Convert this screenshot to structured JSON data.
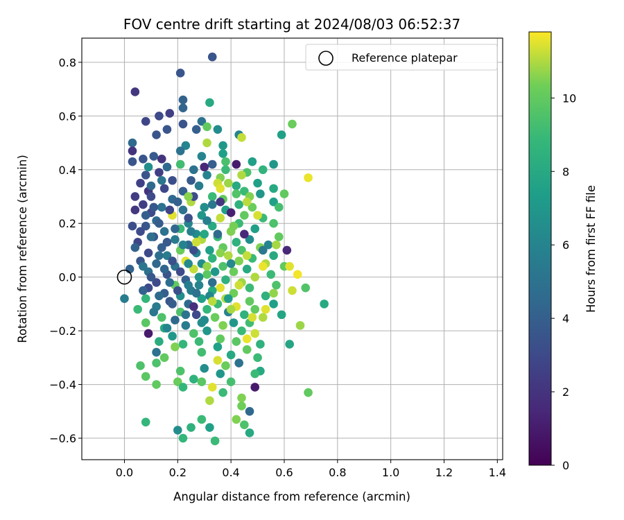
{
  "chart_data": {
    "type": "scatter",
    "title": "FOV centre drift starting at 2024/08/03 06:52:37",
    "xlabel": "Angular distance from reference (arcmin)",
    "ylabel": "Rotation from reference (arcmin)",
    "xlim": [
      -0.16,
      1.42
    ],
    "ylim": [
      -0.68,
      0.89
    ],
    "x_ticks": [
      0.0,
      0.2,
      0.4,
      0.6,
      0.8,
      1.0,
      1.2,
      1.4
    ],
    "x_tick_labels": [
      "0.0",
      "0.2",
      "0.4",
      "0.6",
      "0.8",
      "1.0",
      "1.2",
      "1.4"
    ],
    "y_ticks": [
      -0.6,
      -0.4,
      -0.2,
      0.0,
      0.2,
      0.4,
      0.6,
      0.8
    ],
    "y_tick_labels": [
      "−0.6",
      "−0.4",
      "−0.2",
      "0.0",
      "0.2",
      "0.4",
      "0.6",
      "0.8"
    ],
    "grid": true,
    "legend": {
      "placement": "top-right",
      "entries": [
        "Reference platepar"
      ]
    },
    "reference_point": {
      "x": 0.0,
      "y": 0.0,
      "label": "Reference platepar"
    },
    "colorbar": {
      "label": "Hours from first FF file",
      "colormap": "viridis",
      "range": [
        0,
        11.8
      ],
      "ticks": [
        0,
        2,
        4,
        6,
        8,
        10
      ],
      "tick_labels": [
        "0",
        "2",
        "4",
        "6",
        "8",
        "10"
      ]
    },
    "points": [
      [
        0.33,
        0.82,
        3.5
      ],
      [
        0.04,
        0.69,
        2.2
      ],
      [
        0.21,
        0.76,
        3.5
      ],
      [
        0.22,
        0.66,
        4.2
      ],
      [
        0.32,
        0.65,
        8.0
      ],
      [
        0.22,
        0.63,
        4.3
      ],
      [
        0.13,
        0.6,
        3.0
      ],
      [
        0.17,
        0.61,
        2.5
      ],
      [
        0.29,
        0.58,
        5.0
      ],
      [
        0.08,
        0.58,
        2.8
      ],
      [
        0.22,
        0.57,
        3.5
      ],
      [
        0.31,
        0.56,
        10.0
      ],
      [
        0.35,
        0.55,
        6.5
      ],
      [
        0.27,
        0.55,
        4.0
      ],
      [
        0.16,
        0.55,
        3.5
      ],
      [
        0.43,
        0.53,
        6.0
      ],
      [
        0.44,
        0.52,
        11.2
      ],
      [
        0.59,
        0.53,
        7.5
      ],
      [
        0.63,
        0.57,
        10.2
      ],
      [
        0.12,
        0.53,
        3.5
      ],
      [
        0.03,
        0.5,
        4.5
      ],
      [
        0.31,
        0.5,
        11.0
      ],
      [
        0.37,
        0.49,
        7.0
      ],
      [
        0.23,
        0.49,
        6.0
      ],
      [
        0.03,
        0.47,
        2.0
      ],
      [
        0.21,
        0.47,
        5.0
      ],
      [
        0.37,
        0.46,
        7.5
      ],
      [
        0.29,
        0.45,
        6.0
      ],
      [
        0.07,
        0.44,
        3.5
      ],
      [
        0.11,
        0.45,
        3.8
      ],
      [
        0.03,
        0.43,
        3.5
      ],
      [
        0.42,
        0.42,
        1.0
      ],
      [
        0.48,
        0.43,
        7.5
      ],
      [
        0.56,
        0.42,
        7.0
      ],
      [
        0.33,
        0.42,
        4.0
      ],
      [
        0.21,
        0.42,
        9.2
      ],
      [
        0.16,
        0.41,
        4.5
      ],
      [
        0.26,
        0.4,
        5.0
      ],
      [
        0.38,
        0.4,
        9.0
      ],
      [
        0.46,
        0.39,
        9.5
      ],
      [
        0.08,
        0.38,
        3.5
      ],
      [
        0.13,
        0.39,
        2.5
      ],
      [
        0.31,
        0.38,
        6.0
      ],
      [
        0.36,
        0.37,
        10.5
      ],
      [
        0.69,
        0.37,
        11.6
      ],
      [
        0.35,
        0.35,
        11.3
      ],
      [
        0.5,
        0.35,
        7.5
      ],
      [
        0.42,
        0.34,
        8.0
      ],
      [
        0.28,
        0.34,
        5.5
      ],
      [
        0.56,
        0.33,
        8.0
      ],
      [
        0.45,
        0.32,
        9.0
      ],
      [
        0.36,
        0.33,
        11.5
      ],
      [
        0.09,
        0.32,
        2.0
      ],
      [
        0.22,
        0.32,
        4.0
      ],
      [
        0.51,
        0.31,
        7.0
      ],
      [
        0.6,
        0.31,
        10.0
      ],
      [
        0.47,
        0.3,
        10.5
      ],
      [
        0.33,
        0.3,
        9.0
      ],
      [
        0.1,
        0.3,
        3.0
      ],
      [
        0.18,
        0.29,
        4.5
      ],
      [
        0.37,
        0.29,
        10.0
      ],
      [
        0.56,
        0.28,
        7.5
      ],
      [
        0.25,
        0.28,
        11.0
      ],
      [
        0.07,
        0.27,
        2.5
      ],
      [
        0.43,
        0.27,
        8.5
      ],
      [
        0.14,
        0.26,
        5.0
      ],
      [
        0.3,
        0.26,
        6.5
      ],
      [
        0.48,
        0.26,
        10.2
      ],
      [
        0.04,
        0.25,
        2.2
      ],
      [
        0.38,
        0.25,
        7.5
      ],
      [
        0.22,
        0.25,
        5.0
      ],
      [
        0.1,
        0.24,
        3.0
      ],
      [
        0.45,
        0.23,
        10.0
      ],
      [
        0.29,
        0.23,
        7.0
      ],
      [
        0.18,
        0.23,
        11.5
      ],
      [
        0.52,
        0.22,
        9.0
      ],
      [
        0.36,
        0.22,
        11.2
      ],
      [
        0.12,
        0.21,
        4.5
      ],
      [
        0.56,
        0.2,
        9.5
      ],
      [
        0.24,
        0.2,
        6.0
      ],
      [
        0.43,
        0.2,
        9.0
      ],
      [
        0.08,
        0.19,
        3.5
      ],
      [
        0.03,
        0.19,
        3.2
      ],
      [
        0.33,
        0.19,
        8.0
      ],
      [
        0.21,
        0.18,
        9.0
      ],
      [
        0.49,
        0.18,
        7.5
      ],
      [
        0.15,
        0.17,
        5.0
      ],
      [
        0.4,
        0.17,
        10.5
      ],
      [
        0.27,
        0.16,
        6.5
      ],
      [
        0.58,
        0.15,
        10.0
      ],
      [
        0.11,
        0.15,
        3.5
      ],
      [
        0.35,
        0.15,
        9.0
      ],
      [
        0.47,
        0.14,
        6.5
      ],
      [
        0.19,
        0.14,
        5.5
      ],
      [
        0.29,
        0.14,
        11.0
      ],
      [
        0.05,
        0.13,
        2.8
      ],
      [
        0.42,
        0.13,
        8.5
      ],
      [
        0.54,
        0.12,
        6.0
      ],
      [
        0.24,
        0.12,
        4.5
      ],
      [
        0.37,
        0.11,
        10.0
      ],
      [
        0.14,
        0.11,
        4.0
      ],
      [
        0.51,
        0.11,
        10.5
      ],
      [
        0.32,
        0.1,
        7.5
      ],
      [
        0.61,
        0.1,
        1.5
      ],
      [
        0.21,
        0.1,
        10.2
      ],
      [
        0.44,
        0.1,
        9.5
      ],
      [
        0.09,
        0.09,
        3.0
      ],
      [
        0.27,
        0.09,
        6.0
      ],
      [
        0.56,
        0.08,
        8.0
      ],
      [
        0.39,
        0.08,
        11.0
      ],
      [
        0.16,
        0.08,
        5.5
      ],
      [
        0.48,
        0.07,
        9.0
      ],
      [
        0.33,
        0.07,
        8.5
      ],
      [
        0.23,
        0.06,
        11.5
      ],
      [
        0.06,
        0.06,
        3.5
      ],
      [
        0.43,
        0.06,
        10.5
      ],
      [
        0.12,
        0.05,
        4.5
      ],
      [
        0.53,
        0.05,
        11.0
      ],
      [
        0.29,
        0.05,
        6.5
      ],
      [
        0.37,
        0.04,
        9.5
      ],
      [
        0.6,
        0.04,
        10.0
      ],
      [
        0.19,
        0.04,
        5.0
      ],
      [
        0.46,
        0.03,
        8.0
      ],
      [
        0.02,
        0.03,
        4.2
      ],
      [
        0.26,
        0.03,
        11.2
      ],
      [
        0.34,
        0.02,
        7.0
      ],
      [
        0.09,
        0.02,
        5.0
      ],
      [
        0.41,
        0.02,
        10.2
      ],
      [
        0.55,
        0.01,
        9.0
      ],
      [
        0.16,
        0.01,
        3.5
      ],
      [
        0.31,
        0.01,
        9.8
      ],
      [
        0.49,
        0.0,
        11.0
      ],
      [
        0.23,
        -0.01,
        4.0
      ],
      [
        0.38,
        -0.01,
        8.5
      ],
      [
        0.12,
        -0.02,
        3.0
      ],
      [
        0.44,
        -0.02,
        10.8
      ],
      [
        0.28,
        -0.03,
        6.0
      ],
      [
        0.57,
        -0.03,
        9.5
      ],
      [
        0.19,
        -0.03,
        10.0
      ],
      [
        0.36,
        -0.04,
        11.5
      ],
      [
        0.09,
        -0.04,
        3.0
      ],
      [
        0.47,
        -0.04,
        9.0
      ],
      [
        0.25,
        -0.05,
        5.5
      ],
      [
        0.63,
        -0.05,
        11.3
      ],
      [
        0.33,
        -0.05,
        8.0
      ],
      [
        0.15,
        -0.06,
        4.0
      ],
      [
        0.41,
        -0.06,
        10.3
      ],
      [
        0.53,
        -0.07,
        8.5
      ],
      [
        0.21,
        -0.07,
        6.5
      ],
      [
        0.38,
        -0.08,
        11.0
      ],
      [
        0.08,
        -0.08,
        8.8
      ],
      [
        0.29,
        -0.08,
        7.5
      ],
      [
        0.47,
        -0.09,
        10.0
      ],
      [
        0.17,
        -0.09,
        3.5
      ],
      [
        0.35,
        -0.1,
        9.0
      ],
      [
        0.56,
        -0.1,
        7.5
      ],
      [
        0.24,
        -0.1,
        4.5
      ],
      [
        0.42,
        -0.11,
        11.5
      ],
      [
        0.12,
        -0.11,
        5.5
      ],
      [
        0.31,
        -0.12,
        8.8
      ],
      [
        0.49,
        -0.12,
        10.0
      ],
      [
        0.05,
        -0.12,
        9.0
      ],
      [
        0.21,
        -0.13,
        9.5
      ],
      [
        0.39,
        -0.13,
        6.0
      ],
      [
        0.59,
        -0.14,
        7.8
      ],
      [
        0.27,
        -0.14,
        3.0
      ],
      [
        0.45,
        -0.14,
        8.5
      ],
      [
        0.14,
        -0.15,
        9.5
      ],
      [
        0.34,
        -0.15,
        10.2
      ],
      [
        0.52,
        -0.15,
        11.0
      ],
      [
        0.19,
        -0.16,
        4.5
      ],
      [
        0.41,
        -0.17,
        7.0
      ],
      [
        0.08,
        -0.17,
        9.8
      ],
      [
        0.29,
        -0.17,
        6.5
      ],
      [
        0.47,
        -0.17,
        9.2
      ],
      [
        0.23,
        -0.18,
        5.5
      ],
      [
        0.37,
        -0.18,
        10.5
      ],
      [
        0.66,
        -0.18,
        10.8
      ],
      [
        0.15,
        -0.19,
        8.0
      ],
      [
        0.31,
        -0.2,
        7.0
      ],
      [
        0.44,
        -0.2,
        9.0
      ],
      [
        0.09,
        -0.21,
        1.0
      ],
      [
        0.26,
        -0.21,
        9.5
      ],
      [
        0.49,
        -0.21,
        11.3
      ],
      [
        0.18,
        -0.22,
        7.0
      ],
      [
        0.36,
        -0.23,
        10.0
      ],
      [
        0.13,
        -0.24,
        8.2
      ],
      [
        0.28,
        -0.24,
        9.0
      ],
      [
        0.42,
        -0.24,
        9.8
      ],
      [
        0.51,
        -0.25,
        8.5
      ],
      [
        0.22,
        -0.25,
        8.8
      ],
      [
        0.62,
        -0.25,
        7.8
      ],
      [
        0.35,
        -0.26,
        7.5
      ],
      [
        0.19,
        -0.26,
        10.5
      ],
      [
        0.46,
        -0.27,
        10.0
      ],
      [
        0.12,
        -0.28,
        5.0
      ],
      [
        0.29,
        -0.28,
        9.2
      ],
      [
        0.4,
        -0.29,
        8.0
      ],
      [
        0.15,
        -0.3,
        10.0
      ],
      [
        0.5,
        -0.3,
        9.0
      ],
      [
        0.35,
        -0.31,
        11.4
      ],
      [
        0.43,
        -0.32,
        5.0
      ],
      [
        0.12,
        -0.32,
        9.5
      ],
      [
        0.06,
        -0.33,
        9.5
      ],
      [
        0.38,
        -0.33,
        10.2
      ],
      [
        0.3,
        -0.34,
        6.5
      ],
      [
        0.51,
        -0.35,
        8.0
      ],
      [
        0.21,
        -0.35,
        9.5
      ],
      [
        0.36,
        -0.36,
        7.0
      ],
      [
        0.49,
        -0.36,
        9.0
      ],
      [
        0.08,
        -0.37,
        9.8
      ],
      [
        0.26,
        -0.38,
        8.5
      ],
      [
        0.12,
        -0.4,
        10.0
      ],
      [
        0.4,
        -0.39,
        9.3
      ],
      [
        0.2,
        -0.39,
        10.2
      ],
      [
        0.29,
        -0.39,
        9.8
      ],
      [
        0.37,
        -0.43,
        9.0
      ],
      [
        0.33,
        -0.41,
        11.5
      ],
      [
        0.22,
        -0.41,
        8.8
      ],
      [
        0.49,
        -0.41,
        1.0
      ],
      [
        0.44,
        -0.45,
        10.5
      ],
      [
        0.69,
        -0.43,
        10.0
      ],
      [
        0.32,
        -0.46,
        11.0
      ],
      [
        0.44,
        -0.48,
        10.3
      ],
      [
        0.47,
        -0.5,
        4.5
      ],
      [
        0.29,
        -0.53,
        9.0
      ],
      [
        0.42,
        -0.53,
        10.5
      ],
      [
        0.08,
        -0.54,
        8.8
      ],
      [
        0.45,
        -0.55,
        9.5
      ],
      [
        0.32,
        -0.56,
        7.5
      ],
      [
        0.25,
        -0.56,
        8.5
      ],
      [
        0.2,
        -0.57,
        6.5
      ],
      [
        0.47,
        -0.58,
        8.0
      ],
      [
        0.22,
        -0.6,
        8.8
      ],
      [
        0.34,
        -0.61,
        9.0
      ],
      [
        0.75,
        -0.1,
        8.0
      ],
      [
        0.68,
        -0.04,
        9.6
      ],
      [
        0.0,
        -0.08,
        5.5
      ],
      [
        0.14,
        0.44,
        2.0
      ],
      [
        0.18,
        0.36,
        3.2
      ],
      [
        0.06,
        0.35,
        2.6
      ],
      [
        0.25,
        0.36,
        3.8
      ],
      [
        0.1,
        0.34,
        4.6
      ],
      [
        0.3,
        0.41,
        1.5
      ],
      [
        0.15,
        0.33,
        2.9
      ],
      [
        0.26,
        0.3,
        3.1
      ],
      [
        0.04,
        0.3,
        2.4
      ],
      [
        0.2,
        0.28,
        4.1
      ],
      [
        0.33,
        0.27,
        5.3
      ],
      [
        0.11,
        0.26,
        3.6
      ],
      [
        0.17,
        0.25,
        2.8
      ],
      [
        0.08,
        0.23,
        4.0
      ],
      [
        0.24,
        0.22,
        3.3
      ],
      [
        0.13,
        0.2,
        3.9
      ],
      [
        0.31,
        0.21,
        5.8
      ],
      [
        0.19,
        0.18,
        4.4
      ],
      [
        0.06,
        0.17,
        3.1
      ],
      [
        0.25,
        0.17,
        5.7
      ],
      [
        0.1,
        0.15,
        4.8
      ],
      [
        0.3,
        0.16,
        7.9
      ],
      [
        0.16,
        0.13,
        3.7
      ],
      [
        0.22,
        0.12,
        5.9
      ],
      [
        0.04,
        0.11,
        4.2
      ],
      [
        0.26,
        0.1,
        3.2
      ],
      [
        0.13,
        0.08,
        4.9
      ],
      [
        0.18,
        0.06,
        3.4
      ],
      [
        0.24,
        0.05,
        6.3
      ],
      [
        0.07,
        0.04,
        5.2
      ],
      [
        0.15,
        0.03,
        4.3
      ],
      [
        0.21,
        0.02,
        3.0
      ],
      [
        0.28,
        0.0,
        6.8
      ],
      [
        0.1,
        0.0,
        3.6
      ],
      [
        0.17,
        -0.02,
        4.7
      ],
      [
        0.24,
        -0.03,
        5.6
      ],
      [
        0.07,
        -0.05,
        4.1
      ],
      [
        0.2,
        -0.05,
        3.3
      ],
      [
        0.27,
        -0.06,
        5.0
      ],
      [
        0.13,
        -0.07,
        4.6
      ],
      [
        0.32,
        -0.07,
        6.1
      ],
      [
        0.18,
        -0.1,
        3.9
      ],
      [
        0.26,
        -0.11,
        1.8
      ],
      [
        0.11,
        -0.13,
        5.3
      ],
      [
        0.23,
        -0.14,
        5.1
      ],
      [
        0.3,
        -0.16,
        6.4
      ],
      [
        0.16,
        -0.19,
        6.0
      ],
      [
        0.4,
        0.24,
        1.2
      ],
      [
        0.36,
        0.28,
        2.2
      ],
      [
        0.35,
        0.16,
        4.6
      ],
      [
        0.4,
        0.05,
        6.2
      ],
      [
        0.33,
        -0.02,
        4.8
      ],
      [
        0.45,
        0.16,
        1.6
      ],
      [
        0.52,
        0.1,
        5.4
      ],
      [
        0.39,
        -0.08,
        7.2
      ],
      [
        0.14,
        0.36,
        5.2
      ],
      [
        0.09,
        0.41,
        6.6
      ],
      [
        0.52,
        0.4,
        8.6
      ],
      [
        0.42,
        0.31,
        9.6
      ],
      [
        0.39,
        0.35,
        10.8
      ],
      [
        0.46,
        0.28,
        11.1
      ],
      [
        0.5,
        0.23,
        11.4
      ],
      [
        0.41,
        0.19,
        10.4
      ],
      [
        0.36,
        0.09,
        10.6
      ],
      [
        0.46,
        0.08,
        11.2
      ],
      [
        0.43,
        -0.03,
        11.3
      ],
      [
        0.4,
        -0.12,
        10.9
      ],
      [
        0.33,
        -0.09,
        11.1
      ],
      [
        0.48,
        -0.15,
        11.4
      ],
      [
        0.56,
        -0.06,
        10.7
      ],
      [
        0.52,
        0.04,
        11.6
      ],
      [
        0.31,
        0.04,
        10.7
      ],
      [
        0.27,
        0.13,
        11.3
      ],
      [
        0.24,
        0.3,
        10.6
      ],
      [
        0.44,
        0.38,
        11.0
      ],
      [
        0.38,
        0.43,
        9.4
      ],
      [
        0.58,
        0.26,
        9.3
      ],
      [
        0.62,
        0.04,
        11.5
      ],
      [
        0.65,
        0.01,
        11.7
      ],
      [
        0.57,
        0.12,
        10.9
      ],
      [
        0.53,
        -0.12,
        11.5
      ],
      [
        0.46,
        -0.23,
        11.6
      ]
    ]
  }
}
